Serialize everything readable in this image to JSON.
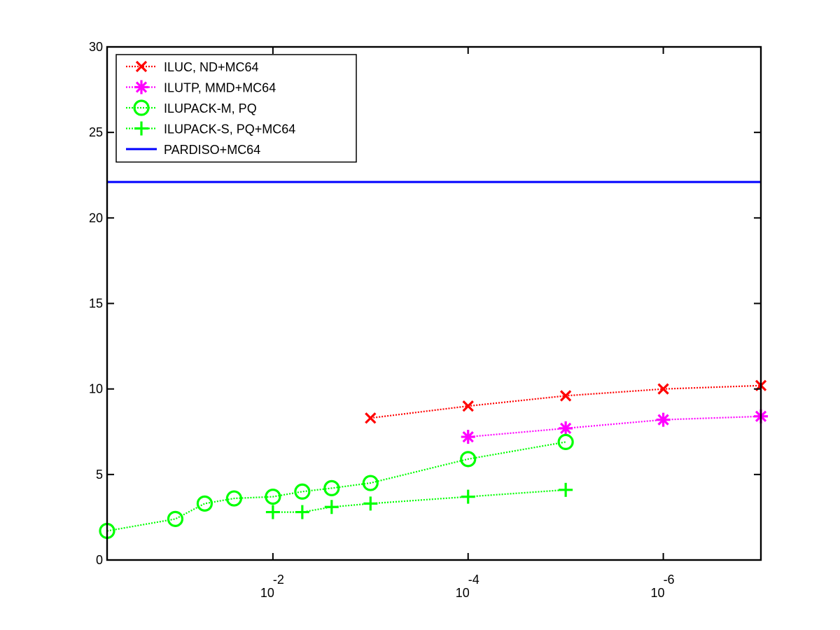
{
  "chart_data": {
    "type": "line",
    "x_scale": "log10",
    "x_reversed": true,
    "xlim": [
      0.5,
      1e-07
    ],
    "ylim": [
      0,
      30
    ],
    "y_ticks": [
      0,
      5,
      10,
      15,
      20,
      25,
      30
    ],
    "x_ticks": [
      {
        "value": 0.01,
        "base": "10",
        "exponent": "-2"
      },
      {
        "value": 0.0001,
        "base": "10",
        "exponent": "-4"
      },
      {
        "value": 1e-06,
        "base": "10",
        "exponent": "-6"
      }
    ],
    "legend_position": "top-left",
    "grid": false,
    "series": [
      {
        "name": "ILUC,  ND+MC64",
        "color": "#ff0000",
        "marker": "x",
        "line_style": "dotted",
        "x": [
          0.001,
          0.0001,
          1e-05,
          1e-06,
          1e-07
        ],
        "y": [
          8.3,
          9.0,
          9.6,
          10.0,
          10.2
        ]
      },
      {
        "name": "ILUTP, MMD+MC64",
        "color": "#ff00ff",
        "marker": "asterisk",
        "line_style": "dotted",
        "x": [
          0.0001,
          1e-05,
          1e-06,
          1e-07
        ],
        "y": [
          7.2,
          7.7,
          8.2,
          8.4
        ]
      },
      {
        "name": "ILUPACK-M, PQ",
        "color": "#00ff00",
        "marker": "circle",
        "line_style": "dotted",
        "x": [
          0.5,
          0.1,
          0.05,
          0.025,
          0.01,
          0.005,
          0.0025,
          0.001,
          0.0001,
          1e-05
        ],
        "y": [
          1.7,
          2.4,
          3.3,
          3.6,
          3.7,
          4.0,
          4.2,
          4.5,
          5.9,
          6.9
        ]
      },
      {
        "name": "ILUPACK-S, PQ+MC64",
        "color": "#00ff00",
        "marker": "plus",
        "line_style": "dotted",
        "x": [
          0.01,
          0.005,
          0.0025,
          0.001,
          0.0001,
          1e-05
        ],
        "y": [
          2.8,
          2.8,
          3.1,
          3.3,
          3.7,
          4.1
        ]
      },
      {
        "name": "PARDISO+MC64",
        "color": "#0000ff",
        "marker": "none",
        "line_style": "solid",
        "x": [
          0.5,
          1e-07
        ],
        "y": [
          22.1,
          22.1
        ]
      }
    ]
  }
}
